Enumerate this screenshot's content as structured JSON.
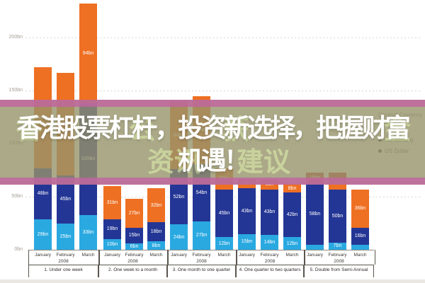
{
  "overlay": {
    "headline_line1": "香港股票杠杆，投资新选择，把握财富",
    "headline_line2": "机遇！",
    "watermark_line1_fragments": [
      {
        "text": "香",
        "x": 22
      },
      {
        "text": "公",
        "x": 182
      },
      {
        "text": "获",
        "x": 314
      },
      {
        "text": "金",
        "x": 542
      }
    ],
    "watermark_line2_fragments": [
      {
        "text": "资讯",
        "x": 208
      },
      {
        "text": "建议",
        "x": 334
      }
    ]
  },
  "chart_data": {
    "type": "bar",
    "stacked": true,
    "unit": "bn",
    "y_axis": {
      "tick_values": [
        200,
        150,
        100,
        50,
        0
      ],
      "tick_suffix": "bn",
      "ylim": [
        0,
        235
      ],
      "grid": "dotted"
    },
    "legend": {
      "title": "Original Currency",
      "entries": [
        {
          "label": "UK Sterling"
        },
        {
          "label": "US Dollar"
        }
      ],
      "position": "right-middle",
      "note": "partially covered by banner"
    },
    "series_colors": {
      "light_blue": "#2aa9e1",
      "navy": "#243695",
      "orange": "#ee7023",
      "red": "#c8463c"
    },
    "series_order_bottom_to_top": [
      "light_blue",
      "navy",
      "orange",
      "red"
    ],
    "groups": [
      {
        "category": "1. Under one week",
        "year": "2008",
        "x0": 40,
        "x1": 139,
        "bars": [
          {
            "month": "January",
            "x": 48,
            "segments": [
              {
                "series": "light_blue",
                "value": 29
              },
              {
                "series": "navy",
                "value": 48
              },
              {
                "series": "orange",
                "value": 95
              }
            ]
          },
          {
            "month": "February",
            "x": 80,
            "segments": [
              {
                "series": "light_blue",
                "value": 25
              },
              {
                "series": "navy",
                "value": 45
              },
              {
                "series": "orange",
                "value": 97
              }
            ]
          },
          {
            "month": "March",
            "x": 112,
            "segments": [
              {
                "series": "light_blue",
                "value": 33
              },
              {
                "series": "navy",
                "value": 105
              },
              {
                "series": "orange",
                "value": 94
              }
            ]
          }
        ]
      },
      {
        "category": "2. One week to a month",
        "year": "2008",
        "x0": 139,
        "x1": 236,
        "bars": [
          {
            "month": "January",
            "x": 146,
            "segments": [
              {
                "series": "light_blue",
                "value": 10
              },
              {
                "series": "navy",
                "value": 19
              },
              {
                "series": "orange",
                "value": 31
              }
            ]
          },
          {
            "month": "February",
            "x": 177,
            "segments": [
              {
                "series": "light_blue",
                "value": 6
              },
              {
                "series": "navy",
                "value": 15
              },
              {
                "series": "orange",
                "value": 27
              }
            ]
          },
          {
            "month": "March",
            "x": 208,
            "segments": [
              {
                "series": "light_blue",
                "value": 8
              },
              {
                "series": "navy",
                "value": 18
              },
              {
                "series": "orange",
                "value": 32
              }
            ]
          }
        ]
      },
      {
        "category": "3. One month to one quarter",
        "year": "2008",
        "x0": 236,
        "x1": 333,
        "bars": [
          {
            "month": "January",
            "x": 240,
            "segments": [
              {
                "series": "light_blue",
                "value": 24
              },
              {
                "series": "navy",
                "value": 52
              },
              {
                "series": "orange",
                "value": 64
              }
            ]
          },
          {
            "month": "February",
            "x": 272,
            "segments": [
              {
                "series": "light_blue",
                "value": 27
              },
              {
                "series": "navy",
                "value": 54
              },
              {
                "series": "orange",
                "value": 64
              }
            ]
          },
          {
            "month": "March",
            "x": 304,
            "segments": [
              {
                "series": "light_blue",
                "value": 12
              },
              {
                "series": "navy",
                "value": 45
              },
              {
                "series": "orange",
                "value": 20
              }
            ]
          }
        ]
      },
      {
        "category": "4. One quarter to two quarters",
        "year": "2008",
        "x0": 333,
        "x1": 429,
        "bars": [
          {
            "month": "January",
            "x": 336,
            "segments": [
              {
                "series": "light_blue",
                "value": 15
              },
              {
                "series": "navy",
                "value": 43
              },
              {
                "series": "orange",
                "value": 9
              }
            ]
          },
          {
            "month": "February",
            "x": 368,
            "segments": [
              {
                "series": "light_blue",
                "value": 14
              },
              {
                "series": "navy",
                "value": 43
              },
              {
                "series": "orange",
                "value": 9
              }
            ]
          },
          {
            "month": "March",
            "x": 400,
            "segments": [
              {
                "series": "light_blue",
                "value": 12
              },
              {
                "series": "navy",
                "value": 42
              },
              {
                "series": "orange",
                "value": 8
              }
            ]
          }
        ]
      },
      {
        "category": "5. Double from Semi-Annual",
        "year": "2008",
        "x0": 429,
        "x1": 528,
        "bars": [
          {
            "month": "January",
            "x": 432,
            "segments": [
              {
                "series": "light_blue",
                "value": 5
              },
              {
                "series": "navy",
                "value": 58
              },
              {
                "series": "red",
                "value": 10
              }
            ]
          },
          {
            "month": "February",
            "x": 464,
            "segments": [
              {
                "series": "light_blue",
                "value": 7
              },
              {
                "series": "navy",
                "value": 50
              },
              {
                "series": "orange",
                "value": 11
              },
              {
                "series": "red",
                "value": 5
              }
            ]
          },
          {
            "month": "March",
            "x": 496,
            "segments": [
              {
                "series": "light_blue",
                "value": 5
              },
              {
                "series": "navy",
                "value": 16
              },
              {
                "series": "orange",
                "value": 36
              }
            ]
          }
        ]
      }
    ]
  }
}
